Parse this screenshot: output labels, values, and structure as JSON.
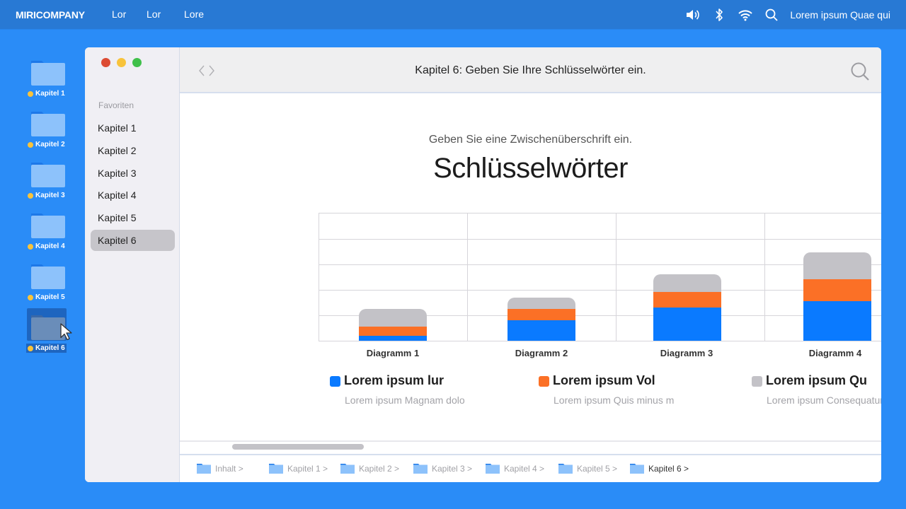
{
  "menubar": {
    "brand": "MIRICOMPANY",
    "items": [
      "Lor",
      "Lor",
      "Lore"
    ],
    "status_icons": [
      "speaker-icon",
      "bluetooth-icon",
      "wifi-icon",
      "search-icon"
    ],
    "user_text": "Lorem ipsum Quae qui"
  },
  "desktop": {
    "icons": [
      {
        "label": "Kapitel 1",
        "selected": false
      },
      {
        "label": "Kapitel 2",
        "selected": false
      },
      {
        "label": "Kapitel 3",
        "selected": false
      },
      {
        "label": "Kapitel 4",
        "selected": false
      },
      {
        "label": "Kapitel 5",
        "selected": false
      },
      {
        "label": "Kapitel 6",
        "selected": true
      }
    ],
    "tag_color": "#f9c33a"
  },
  "window": {
    "title": "Kapitel 6: Geben Sie Ihre Schlüsselwörter ein.",
    "traffic_colors": [
      "#dc4b33",
      "#f8c33b",
      "#3fc04a"
    ],
    "sidebar": {
      "section": "Favoriten",
      "items": [
        "Kapitel 1",
        "Kapitel 2",
        "Kapitel 3",
        "Kapitel 4",
        "Kapitel 5",
        "Kapitel 6"
      ],
      "active_index": 5
    },
    "content": {
      "subtitle": "Geben Sie eine Zwischenüberschrift ein.",
      "heading": "Schlüsselwörter"
    },
    "legend": [
      {
        "name": "Lorem ipsum lur",
        "desc": "Lorem ipsum Magnam dolo",
        "color": "#0a7aff"
      },
      {
        "name": "Lorem ipsum Vol",
        "desc": "Lorem ipsum Quis minus m",
        "color": "#fb7026"
      },
      {
        "name": "Lorem ipsum Qu",
        "desc": "Lorem ipsum Consequatur",
        "color": "#c3c2c7"
      }
    ],
    "pathbar": [
      {
        "label": "Inhalt >",
        "current": false
      },
      {
        "label": "Kapitel 1 >",
        "current": false
      },
      {
        "label": "Kapitel 2 >",
        "current": false
      },
      {
        "label": "Kapitel 3 >",
        "current": false
      },
      {
        "label": "Kapitel 4 >",
        "current": false
      },
      {
        "label": "Kapitel 5 >",
        "current": false
      },
      {
        "label": "Kapitel 6 >",
        "current": true
      }
    ]
  },
  "chart_data": {
    "type": "bar",
    "stacked": true,
    "title": "Schlüsselwörter",
    "subtitle": "Geben Sie eine Zwischenüberschrift ein.",
    "categories": [
      "Diagramm 1",
      "Diagramm 2",
      "Diagramm 3",
      "Diagramm 4"
    ],
    "series": [
      {
        "name": "Lorem ipsum lur",
        "color": "#0a7aff",
        "values": [
          0.2,
          0.8,
          1.3,
          1.55
        ]
      },
      {
        "name": "Lorem ipsum Vol",
        "color": "#fb7026",
        "values": [
          0.35,
          0.45,
          0.6,
          0.85
        ]
      },
      {
        "name": "Lorem ipsum Qu",
        "color": "#c3c2c7",
        "values": [
          0.7,
          0.45,
          0.7,
          1.05
        ]
      }
    ],
    "xlabel": "",
    "ylabel": "",
    "ylim": [
      0,
      5
    ],
    "grid": true,
    "gridlines_y": 5,
    "legend_position": "bottom"
  }
}
